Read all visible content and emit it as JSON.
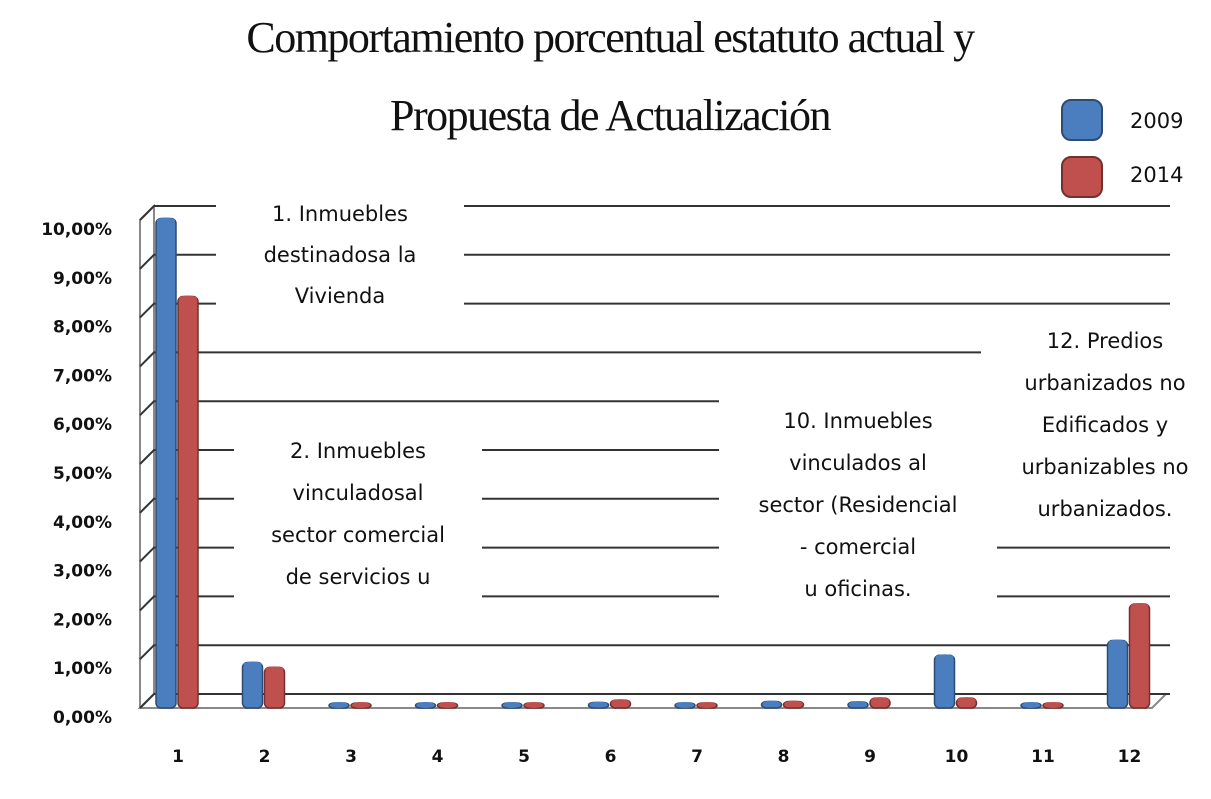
{
  "chart_data": {
    "type": "bar",
    "title": [
      "Comportamiento porcentual estatuto actual y",
      "Propuesta de Actualización"
    ],
    "categories": [
      "1",
      "2",
      "3",
      "4",
      "5",
      "6",
      "7",
      "8",
      "9",
      "10",
      "11",
      "12"
    ],
    "series": [
      {
        "name": "2009",
        "color": "#4a7ebf",
        "values": [
          9.95,
          0.85,
          0.02,
          0.02,
          0.02,
          0.03,
          0.02,
          0.05,
          0.04,
          1.0,
          0.02,
          1.3
        ]
      },
      {
        "name": "2014",
        "color": "#c0504d",
        "values": [
          8.35,
          0.75,
          0.02,
          0.02,
          0.02,
          0.08,
          0.02,
          0.05,
          0.12,
          0.12,
          0.02,
          2.05
        ]
      }
    ],
    "ylim": [
      0,
      10
    ],
    "yticks": [
      {
        "value": 0,
        "label": "0,00%"
      },
      {
        "value": 1,
        "label": "1,00%"
      },
      {
        "value": 2,
        "label": "2,00%"
      },
      {
        "value": 3,
        "label": "3,00%"
      },
      {
        "value": 4,
        "label": "4,00%"
      },
      {
        "value": 5,
        "label": "5,00%"
      },
      {
        "value": 6,
        "label": "6,00%"
      },
      {
        "value": 7,
        "label": "7,00%"
      },
      {
        "value": 8,
        "label": "8,00%"
      },
      {
        "value": 9,
        "label": "9,00%"
      },
      {
        "value": 10,
        "label": "10,00%"
      }
    ],
    "grid": true,
    "legend": "top-right",
    "annotations": [
      {
        "lines": [
          "1. Inmuebles",
          "destinadosa la",
          "Vivienda"
        ]
      },
      {
        "lines": [
          "2. Inmuebles",
          "vinculadosal",
          "sector comercial",
          "de servicios u"
        ]
      },
      {
        "lines": [
          "10.  Inmuebles",
          "vinculados al",
          "sector (Residencial",
          "- comercial",
          "u oficinas."
        ]
      },
      {
        "lines": [
          "12. Predios",
          "urbanizados no",
          "Edificados y",
          "urbanizables no",
          "urbanizados."
        ]
      }
    ]
  }
}
